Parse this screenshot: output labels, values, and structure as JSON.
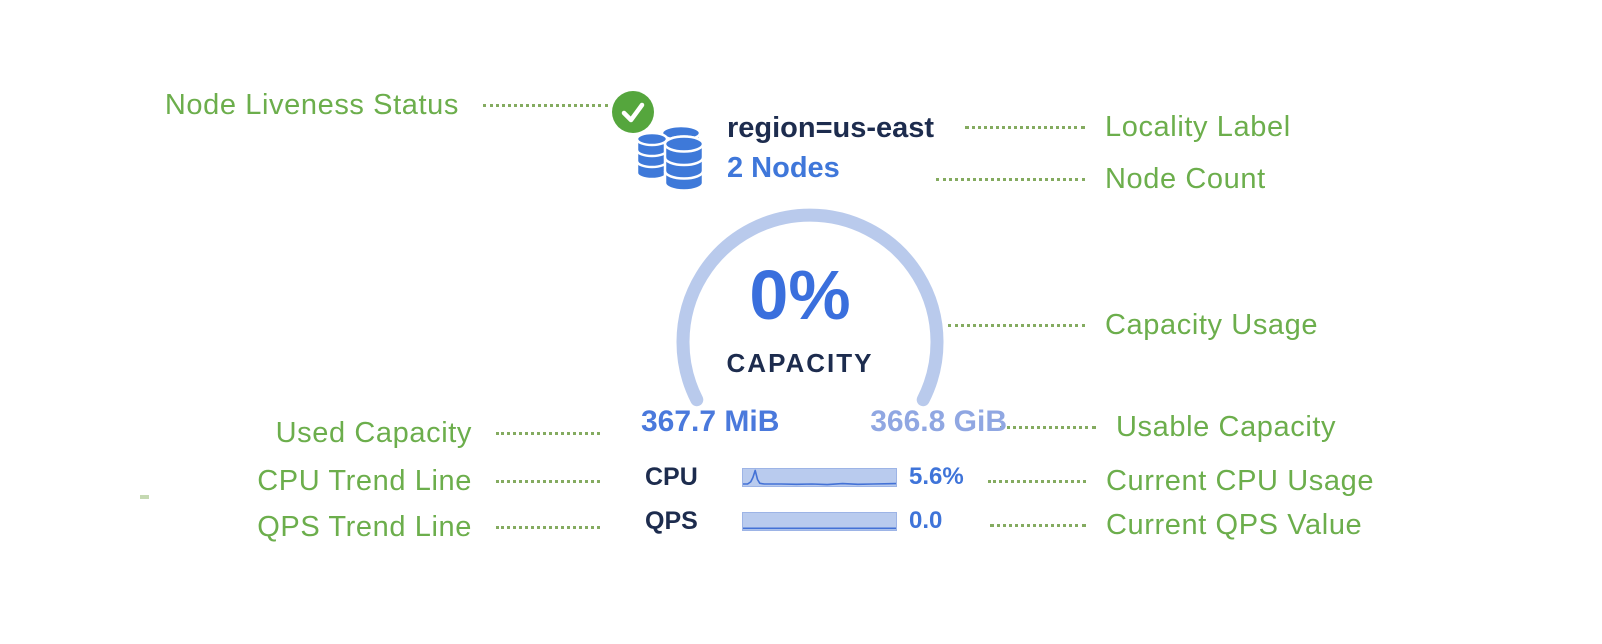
{
  "card": {
    "status": "live",
    "locality_label": "region=us-east",
    "node_count": "2 Nodes",
    "gauge": {
      "percent": "0%",
      "caption": "CAPACITY"
    },
    "used_capacity": "367.7 MiB",
    "usable_capacity": "366.8 GiB",
    "metrics": [
      {
        "id": "cpu",
        "label": "CPU",
        "value": "5.6%",
        "trend": [
          [
            0,
            0.88
          ],
          [
            0.03,
            0.88
          ],
          [
            0.05,
            0.76
          ],
          [
            0.065,
            0.5
          ],
          [
            0.08,
            0.08
          ],
          [
            0.095,
            0.62
          ],
          [
            0.11,
            0.84
          ],
          [
            0.14,
            0.88
          ],
          [
            0.25,
            0.88
          ],
          [
            0.35,
            0.9
          ],
          [
            0.45,
            0.88
          ],
          [
            0.55,
            0.92
          ],
          [
            0.65,
            0.86
          ],
          [
            0.75,
            0.9
          ],
          [
            0.85,
            0.88
          ],
          [
            1,
            0.86
          ]
        ]
      },
      {
        "id": "qps",
        "label": "QPS",
        "value": "0.0",
        "trend": [
          [
            0,
            0.9
          ],
          [
            0.5,
            0.9
          ],
          [
            1,
            0.9
          ]
        ]
      }
    ]
  },
  "annotations": {
    "left": [
      "Node Liveness Status",
      "Used Capacity",
      "CPU Trend Line",
      "QPS Trend Line"
    ],
    "right": [
      "Locality Label",
      "Node Count",
      "Capacity Usage",
      "Usable Capacity",
      "Current CPU Usage",
      "Current QPS Value"
    ]
  },
  "colors": {
    "annotation_green": "#6cae4c",
    "leader_green": "#84ab60",
    "status_green": "#55a63d",
    "navy": "#1d2c4e",
    "blue_strong": "#3a6fdd",
    "blue_medium": "#3f77da",
    "blue_value": "#4a79dc",
    "blue_faded": "#90a7e2",
    "arc_light": "#b9caec",
    "spark_bg": "#b9cbee",
    "spark_border": "#9db4e6",
    "spark_line": "#4472d6",
    "db_blue": "#3e79d9"
  }
}
